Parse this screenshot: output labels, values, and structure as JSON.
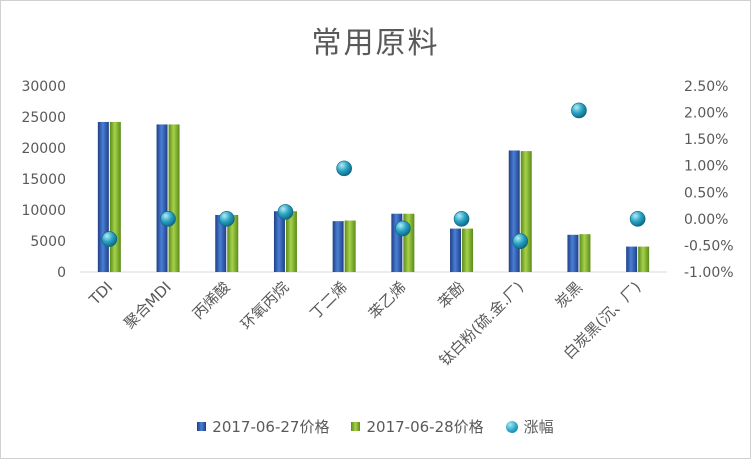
{
  "chart_data": {
    "type": "bar",
    "title": "常用原料",
    "categories": [
      "TDI",
      "聚合MDI",
      "丙烯酸",
      "环氧丙烷",
      "丁二烯",
      "苯乙烯",
      "苯酚",
      "钛白粉(硫.金.厂)",
      "炭黑",
      "白炭黑(沉、厂)"
    ],
    "series": [
      {
        "name": "2017-06-27价格",
        "color": "#2e5aa8",
        "values": [
          24200,
          23800,
          9200,
          9800,
          8200,
          9400,
          7000,
          19600,
          6000,
          4100
        ]
      },
      {
        "name": "2017-06-28价格",
        "color": "#7fae2e",
        "values": [
          24200,
          23800,
          9200,
          9800,
          8300,
          9400,
          7000,
          19500,
          6100,
          4100
        ]
      },
      {
        "name": "涨幅",
        "color": "#2aa4c4",
        "axis": "right",
        "values": [
          -0.0038,
          0.0,
          0.0,
          0.0013,
          0.0095,
          -0.0018,
          0.0,
          -0.0042,
          0.0204,
          0.0
        ]
      }
    ],
    "ylim": [
      0,
      30000
    ],
    "yticks": [
      "0",
      "5000",
      "10000",
      "15000",
      "20000",
      "25000",
      "30000"
    ],
    "y2lim": [
      -0.01,
      0.025
    ],
    "y2ticks": [
      "-1.00%",
      "-0.50%",
      "0.00%",
      "0.50%",
      "1.00%",
      "1.50%",
      "2.00%",
      "2.50%"
    ],
    "legend_position": "bottom",
    "grid": false
  }
}
